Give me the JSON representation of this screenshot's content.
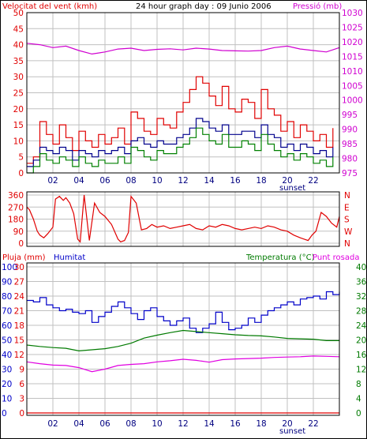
{
  "colors": {
    "wind": "#e00000",
    "gust": "#00008c",
    "wind_green": "#008000",
    "pressure": "#d000d0",
    "direction": "#e00000",
    "humidity": "#0000c8",
    "temperature": "#007a00",
    "dewpoint": "#e000e0",
    "rain": "#e00000",
    "grid": "#c0c0c0",
    "frame": "#000000"
  },
  "chart_data": [
    {
      "type": "line",
      "title": "24 hour graph day : 09 Junio 2006",
      "left_axis_label": "Velocitat del vent (kmh)",
      "right_axis_label": "Pressió (mb)",
      "left_ylim": [
        0,
        50
      ],
      "left_ticks": [
        "0",
        "5",
        "10",
        "15",
        "20",
        "25",
        "30",
        "35",
        "40",
        "45",
        "50"
      ],
      "right_ylim": [
        975,
        1030
      ],
      "right_ticks": [
        "975",
        "980",
        "985",
        "990",
        "995",
        "1000",
        "1005",
        "1010",
        "1015",
        "1020",
        "1025",
        "1030"
      ],
      "x_ticks": [
        "02",
        "04",
        "06",
        "08",
        "10",
        "12",
        "14",
        "16",
        "18",
        "20",
        "22"
      ],
      "x_annotation": "sunset",
      "series": [
        {
          "name": "",
          "axis": "left",
          "color_key": "wind",
          "x": [
            0,
            0.5,
            1,
            1.5,
            2,
            2.5,
            3,
            3.5,
            4,
            4.5,
            5,
            5.5,
            6,
            6.5,
            7,
            7.5,
            8,
            8.5,
            9,
            9.5,
            10,
            10.5,
            11,
            11.5,
            12,
            12.5,
            13,
            13.5,
            14,
            14.5,
            15,
            15.5,
            16,
            16.5,
            17,
            17.5,
            18,
            18.5,
            19,
            19.5,
            20,
            20.5,
            21,
            21.5,
            22,
            22.5,
            23,
            23.5
          ],
          "y": [
            3,
            5,
            16,
            12,
            9,
            15,
            11,
            7,
            13,
            10,
            8,
            12,
            9,
            11,
            14,
            9,
            19,
            17,
            13,
            12,
            17,
            15,
            14,
            19,
            22,
            26,
            30,
            28,
            24,
            21,
            27,
            20,
            19,
            23,
            22,
            17,
            26,
            20,
            18,
            13,
            16,
            11,
            15,
            13,
            10,
            12,
            8,
            14
          ]
        },
        {
          "name": "",
          "axis": "left",
          "color_key": "gust",
          "x": [
            0,
            0.5,
            1,
            1.5,
            2,
            2.5,
            3,
            3.5,
            4,
            4.5,
            5,
            5.5,
            6,
            6.5,
            7,
            7.5,
            8,
            8.5,
            9,
            9.5,
            10,
            10.5,
            11,
            11.5,
            12,
            12.5,
            13,
            13.5,
            14,
            14.5,
            15,
            15.5,
            16,
            16.5,
            17,
            17.5,
            18,
            18.5,
            19,
            19.5,
            20,
            20.5,
            21,
            21.5,
            22,
            22.5,
            23,
            23.5
          ],
          "y": [
            2,
            4,
            8,
            7,
            6,
            8,
            7,
            4,
            7,
            6,
            5,
            7,
            6,
            7,
            8,
            6,
            10,
            11,
            9,
            8,
            10,
            9,
            9,
            11,
            12,
            14,
            17,
            16,
            14,
            13,
            15,
            12,
            12,
            13,
            13,
            11,
            15,
            12,
            11,
            8,
            9,
            7,
            9,
            8,
            6,
            7,
            5,
            8
          ]
        },
        {
          "name": "",
          "axis": "left",
          "color_key": "wind_green",
          "x": [
            0,
            0.5,
            1,
            1.5,
            2,
            2.5,
            3,
            3.5,
            4,
            4.5,
            5,
            5.5,
            6,
            6.5,
            7,
            7.5,
            8,
            8.5,
            9,
            9.5,
            10,
            10.5,
            11,
            11.5,
            12,
            12.5,
            13,
            13.5,
            14,
            14.5,
            15,
            15.5,
            16,
            16.5,
            17,
            17.5,
            18,
            18.5,
            19,
            19.5,
            20,
            20.5,
            21,
            21.5,
            22,
            22.5,
            23,
            23.5
          ],
          "y": [
            0,
            2,
            6,
            4,
            3,
            5,
            4,
            2,
            5,
            3,
            2,
            4,
            3,
            3,
            5,
            3,
            8,
            7,
            5,
            4,
            7,
            6,
            6,
            8,
            9,
            11,
            14,
            12,
            10,
            9,
            12,
            8,
            8,
            10,
            9,
            7,
            12,
            9,
            7,
            5,
            6,
            4,
            6,
            5,
            3,
            4,
            2,
            5
          ]
        },
        {
          "name": "",
          "axis": "right",
          "color_key": "pressure",
          "x": [
            0,
            1,
            2,
            3,
            4,
            5,
            6,
            7,
            8,
            9,
            10,
            11,
            12,
            13,
            14,
            15,
            16,
            17,
            18,
            19,
            20,
            21,
            22,
            23,
            24
          ],
          "y": [
            1019.5,
            1019.0,
            1018.0,
            1018.5,
            1017.0,
            1015.8,
            1016.5,
            1017.5,
            1017.8,
            1017.0,
            1017.4,
            1017.6,
            1017.2,
            1017.8,
            1017.5,
            1017.0,
            1016.9,
            1016.8,
            1017.0,
            1018.0,
            1018.5,
            1017.5,
            1017.0,
            1016.5,
            1018.0
          ]
        }
      ]
    },
    {
      "type": "line",
      "y_ticks": [
        "0",
        "90",
        "180",
        "270",
        "360"
      ],
      "ylim": [
        0,
        360
      ],
      "right_labels": [
        "N",
        "W",
        "S",
        "E",
        "N"
      ],
      "series": [
        {
          "name": "",
          "color_key": "direction",
          "x": [
            0,
            0.2,
            0.5,
            0.8,
            1,
            1.3,
            1.6,
            2,
            2.2,
            2.5,
            2.8,
            3,
            3.3,
            3.6,
            3.9,
            4.1,
            4.4,
            4.8,
            5.2,
            5.6,
            6,
            6.5,
            7,
            7.2,
            7.5,
            7.8,
            8,
            8.4,
            8.8,
            9.2,
            9.6,
            10,
            10.5,
            11,
            11.5,
            12,
            12.5,
            13,
            13.5,
            14,
            14.5,
            15,
            15.5,
            16,
            16.5,
            17,
            17.5,
            18,
            18.5,
            19,
            19.5,
            20,
            20.5,
            21,
            21.3,
            21.6,
            21.9,
            22.2,
            22.6,
            23,
            23.4,
            23.8,
            24
          ],
          "y": [
            270,
            250,
            180,
            90,
            60,
            40,
            70,
            120,
            330,
            350,
            320,
            340,
            300,
            220,
            30,
            10,
            360,
            20,
            300,
            230,
            200,
            140,
            30,
            10,
            20,
            80,
            350,
            300,
            100,
            110,
            140,
            120,
            130,
            110,
            120,
            130,
            140,
            110,
            100,
            130,
            120,
            140,
            130,
            110,
            100,
            110,
            120,
            110,
            130,
            120,
            100,
            90,
            60,
            40,
            30,
            20,
            60,
            90,
            230,
            200,
            150,
            120,
            200
          ]
        }
      ]
    },
    {
      "type": "line",
      "left_axis_label": "Pluja (mm)",
      "left_axis_label2": "Humitat",
      "right_axis_label": "Temperatura (°C)",
      "right_axis_label2": "Punt rosada",
      "left_ylim": [
        0,
        100
      ],
      "left_ticks_outer": [
        "0",
        "10",
        "20",
        "30",
        "40",
        "50",
        "60",
        "70",
        "80",
        "90",
        "100"
      ],
      "left_ticks_inner": [
        "0",
        "3",
        "6",
        "9",
        "12",
        "15",
        "18",
        "21",
        "24",
        "27",
        "30"
      ],
      "right_ylim": [
        0,
        40
      ],
      "right_ticks": [
        "0",
        "4",
        "8",
        "12",
        "16",
        "20",
        "24",
        "28",
        "32",
        "36",
        "40"
      ],
      "x_ticks": [
        "02",
        "04",
        "06",
        "08",
        "10",
        "12",
        "14",
        "16",
        "18",
        "20",
        "22"
      ],
      "x_annotation": "sunset",
      "series": [
        {
          "name": "Humitat",
          "axis": "left",
          "color_key": "humidity",
          "x": [
            0,
            0.5,
            1,
            1.5,
            2,
            2.5,
            3,
            3.5,
            4,
            4.5,
            5,
            5.5,
            6,
            6.5,
            7,
            7.5,
            8,
            8.5,
            9,
            9.5,
            10,
            10.5,
            11,
            11.5,
            12,
            12.5,
            13,
            13.5,
            14,
            14.5,
            15,
            15.5,
            16,
            16.5,
            17,
            17.5,
            18,
            18.5,
            19,
            19.5,
            20,
            20.5,
            21,
            21.5,
            22,
            22.5,
            23,
            23.5,
            24
          ],
          "y": [
            77,
            76,
            79,
            74,
            72,
            70,
            71,
            69,
            68,
            70,
            62,
            66,
            69,
            73,
            76,
            72,
            68,
            64,
            70,
            72,
            66,
            63,
            60,
            63,
            65,
            58,
            55,
            58,
            61,
            69,
            62,
            57,
            58,
            60,
            65,
            62,
            67,
            70,
            72,
            74,
            76,
            74,
            78,
            79,
            80,
            78,
            83,
            81,
            83
          ]
        },
        {
          "name": "Temperatura",
          "axis": "right",
          "color_key": "temperature",
          "x": [
            0,
            1,
            2,
            3,
            4,
            5,
            6,
            7,
            8,
            9,
            10,
            11,
            12,
            13,
            14,
            15,
            16,
            17,
            18,
            19,
            20,
            21,
            22,
            23,
            24
          ],
          "y": [
            18.6,
            18.2,
            17.9,
            17.7,
            17.0,
            17.3,
            17.6,
            18.2,
            19.1,
            20.5,
            21.3,
            22.0,
            22.6,
            22.3,
            22.0,
            21.7,
            21.4,
            21.2,
            21.1,
            20.8,
            20.4,
            20.3,
            20.2,
            19.8,
            19.8
          ]
        },
        {
          "name": "Punt rosada",
          "axis": "right",
          "color_key": "dewpoint",
          "x": [
            0,
            1,
            2,
            3,
            4,
            5,
            6,
            7,
            8,
            9,
            10,
            11,
            12,
            13,
            14,
            15,
            16,
            17,
            18,
            19,
            20,
            21,
            22,
            23,
            24
          ],
          "y": [
            14.0,
            13.5,
            13.1,
            13.0,
            12.4,
            11.3,
            12.0,
            13.0,
            13.3,
            13.5,
            14.0,
            14.3,
            14.7,
            14.4,
            13.9,
            14.6,
            14.8,
            14.9,
            15.0,
            15.2,
            15.3,
            15.4,
            15.6,
            15.5,
            15.4
          ]
        },
        {
          "name": "Pluja",
          "axis": "left",
          "color_key": "rain",
          "x": [
            0,
            24
          ],
          "y": [
            0,
            0
          ]
        }
      ]
    }
  ]
}
